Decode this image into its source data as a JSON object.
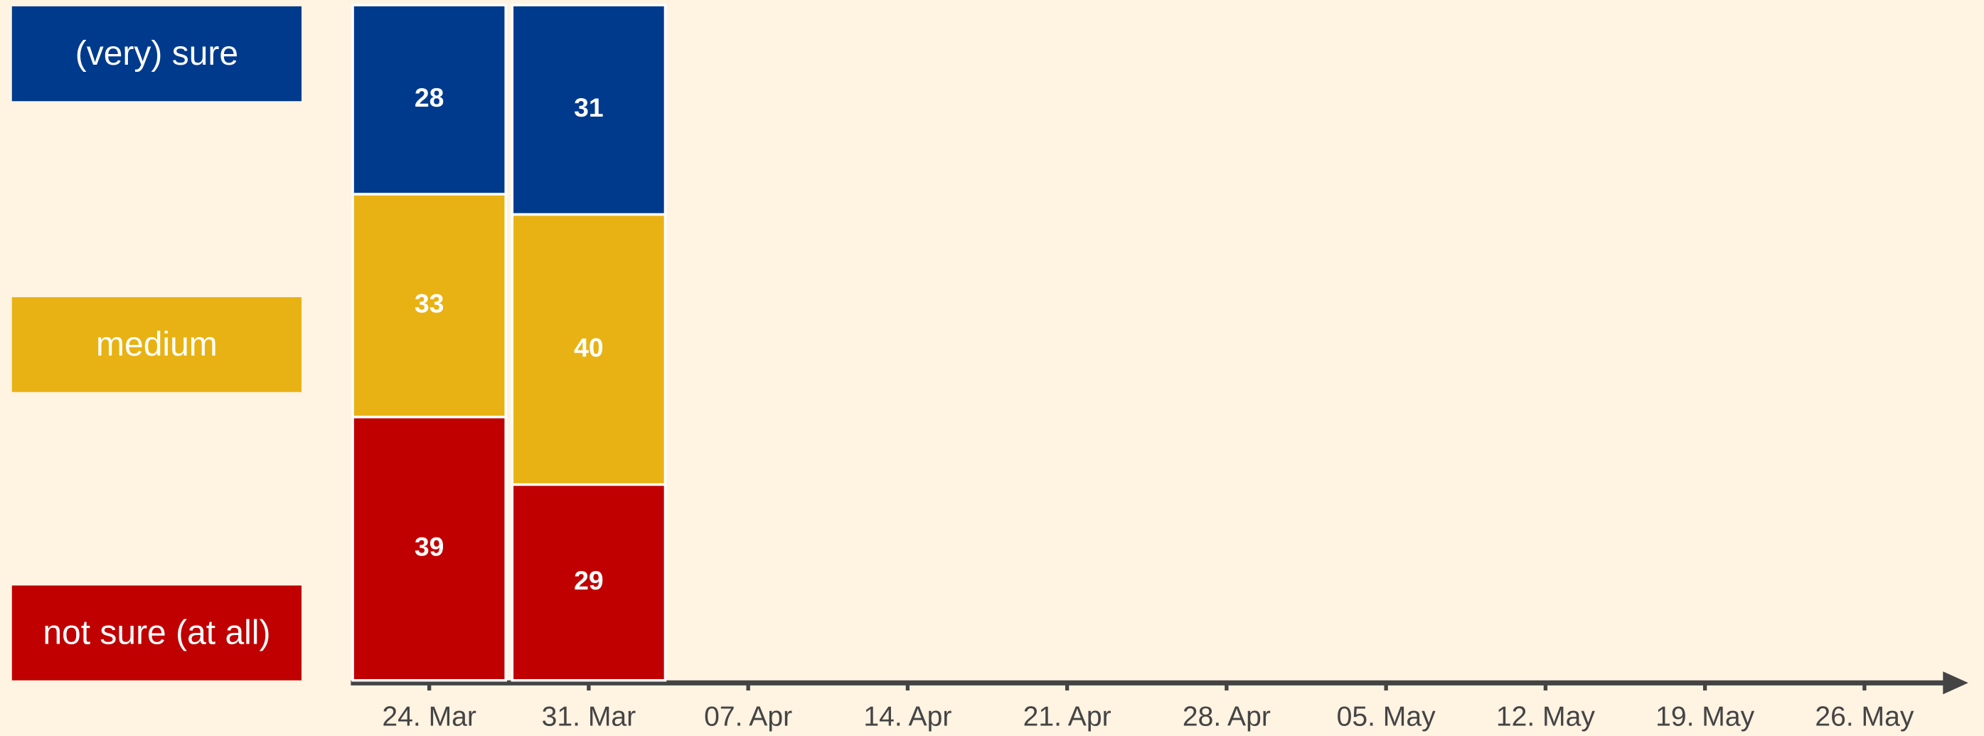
{
  "chart_data": {
    "type": "stacked_bar",
    "categories": [
      "24. Mar",
      "31. Mar",
      "07. Apr",
      "14. Apr",
      "21. Apr",
      "28. Apr",
      "05. May",
      "12. May",
      "19. May",
      "26. May"
    ],
    "series": [
      {
        "name": "not sure (at all)",
        "color": "#c00000",
        "values": [
          39,
          29,
          null,
          null,
          null,
          null,
          null,
          null,
          null,
          null
        ]
      },
      {
        "name": "medium",
        "color": "#e8b214",
        "values": [
          33,
          40,
          null,
          null,
          null,
          null,
          null,
          null,
          null,
          null
        ]
      },
      {
        "name": "(very) sure",
        "color": "#003a8c",
        "values": [
          28,
          31,
          null,
          null,
          null,
          null,
          null,
          null,
          null,
          null
        ]
      }
    ],
    "ylim": [
      0,
      100
    ]
  }
}
